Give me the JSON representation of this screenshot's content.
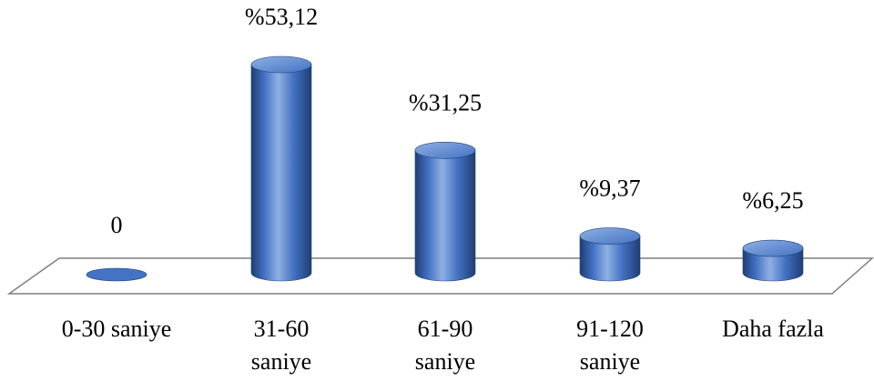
{
  "chart_data": {
    "type": "bar",
    "style": "3d-cylinder",
    "title": "",
    "xlabel": "",
    "ylabel": "",
    "grid": false,
    "legend": "none",
    "categories": [
      [
        "0-30 saniye"
      ],
      [
        "31-60",
        "saniye"
      ],
      [
        "61-90",
        "saniye"
      ],
      [
        "91-120",
        "saniye"
      ],
      [
        "Daha fazla"
      ]
    ],
    "values": [
      0,
      53.12,
      31.25,
      9.37,
      6.25
    ],
    "data_labels": [
      "0",
      "%53,12",
      "%31,25",
      "%9,37",
      "%6,25"
    ],
    "ylim": [
      0,
      60
    ],
    "colors": {
      "bar": "#4472C4",
      "bar_dark": "#1F3E73",
      "bar_light": "#8FB0E3",
      "floor_stroke": "#7F7F7F"
    }
  }
}
